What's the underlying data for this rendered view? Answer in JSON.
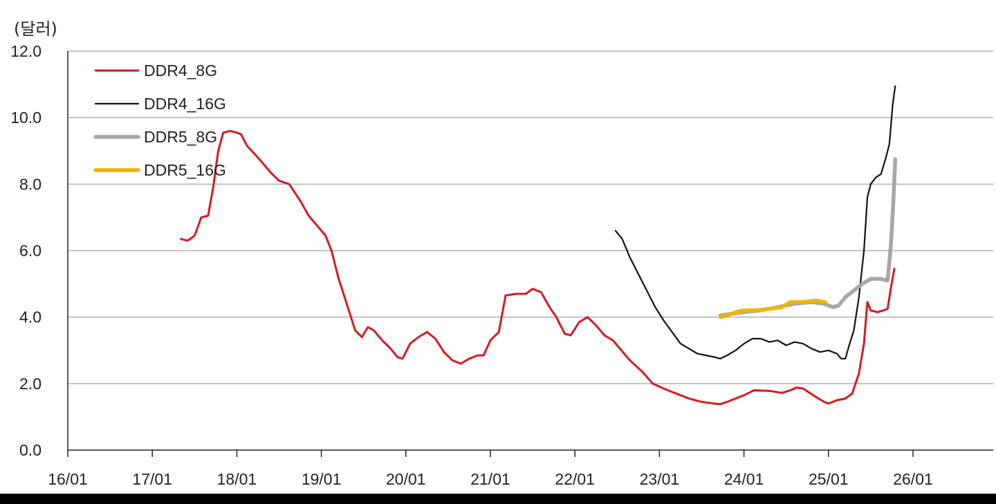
{
  "chart_data": {
    "type": "line",
    "unit_label": "(달러)",
    "ylim": [
      0,
      12
    ],
    "y_ticks": [
      "0.0",
      "2.0",
      "4.0",
      "6.0",
      "8.0",
      "10.0",
      "12.0"
    ],
    "y_tick_values": [
      0,
      2,
      4,
      6,
      8,
      10,
      12
    ],
    "x_ticks": [
      "16/01",
      "17/01",
      "18/01",
      "19/01",
      "20/01",
      "21/01",
      "22/01",
      "23/01",
      "24/01",
      "25/01",
      "26/01"
    ],
    "x_tick_values": [
      2016.0,
      2017.0,
      2018.0,
      2019.0,
      2020.0,
      2021.0,
      2022.0,
      2023.0,
      2024.0,
      2025.0,
      2026.0
    ],
    "xlim": [
      2016.0,
      2026.9
    ],
    "grid": "horizontal",
    "legend_position": "top-left",
    "series": [
      {
        "name": "DDR4_8G",
        "color": "#d71920",
        "points": [
          [
            2017.34,
            6.35
          ],
          [
            2017.42,
            6.3
          ],
          [
            2017.5,
            6.45
          ],
          [
            2017.58,
            7.0
          ],
          [
            2017.66,
            7.05
          ],
          [
            2017.72,
            7.9
          ],
          [
            2017.78,
            9.0
          ],
          [
            2017.84,
            9.55
          ],
          [
            2017.92,
            9.6
          ],
          [
            2018.0,
            9.55
          ],
          [
            2018.05,
            9.5
          ],
          [
            2018.12,
            9.15
          ],
          [
            2018.25,
            8.8
          ],
          [
            2018.4,
            8.35
          ],
          [
            2018.5,
            8.1
          ],
          [
            2018.62,
            8.0
          ],
          [
            2018.75,
            7.5
          ],
          [
            2018.85,
            7.05
          ],
          [
            2018.95,
            6.75
          ],
          [
            2019.05,
            6.45
          ],
          [
            2019.12,
            6.0
          ],
          [
            2019.2,
            5.2
          ],
          [
            2019.3,
            4.4
          ],
          [
            2019.4,
            3.6
          ],
          [
            2019.48,
            3.4
          ],
          [
            2019.55,
            3.7
          ],
          [
            2019.62,
            3.6
          ],
          [
            2019.72,
            3.3
          ],
          [
            2019.82,
            3.05
          ],
          [
            2019.9,
            2.8
          ],
          [
            2019.96,
            2.75
          ],
          [
            2020.05,
            3.2
          ],
          [
            2020.15,
            3.4
          ],
          [
            2020.25,
            3.55
          ],
          [
            2020.35,
            3.35
          ],
          [
            2020.45,
            2.95
          ],
          [
            2020.55,
            2.7
          ],
          [
            2020.65,
            2.6
          ],
          [
            2020.75,
            2.75
          ],
          [
            2020.85,
            2.85
          ],
          [
            2020.92,
            2.85
          ],
          [
            2021.0,
            3.3
          ],
          [
            2021.1,
            3.55
          ],
          [
            2021.18,
            4.65
          ],
          [
            2021.3,
            4.7
          ],
          [
            2021.42,
            4.7
          ],
          [
            2021.5,
            4.85
          ],
          [
            2021.6,
            4.75
          ],
          [
            2021.7,
            4.3
          ],
          [
            2021.78,
            4.0
          ],
          [
            2021.88,
            3.5
          ],
          [
            2021.95,
            3.45
          ],
          [
            2022.05,
            3.85
          ],
          [
            2022.15,
            4.0
          ],
          [
            2022.25,
            3.75
          ],
          [
            2022.35,
            3.45
          ],
          [
            2022.45,
            3.3
          ],
          [
            2022.55,
            3.0
          ],
          [
            2022.65,
            2.7
          ],
          [
            2022.8,
            2.35
          ],
          [
            2022.92,
            2.0
          ],
          [
            2023.05,
            1.85
          ],
          [
            2023.2,
            1.7
          ],
          [
            2023.35,
            1.55
          ],
          [
            2023.5,
            1.45
          ],
          [
            2023.65,
            1.4
          ],
          [
            2023.72,
            1.38
          ],
          [
            2023.8,
            1.45
          ],
          [
            2023.9,
            1.55
          ],
          [
            2024.0,
            1.65
          ],
          [
            2024.12,
            1.8
          ],
          [
            2024.3,
            1.78
          ],
          [
            2024.45,
            1.72
          ],
          [
            2024.55,
            1.8
          ],
          [
            2024.62,
            1.88
          ],
          [
            2024.7,
            1.85
          ],
          [
            2024.85,
            1.6
          ],
          [
            2024.95,
            1.45
          ],
          [
            2025.0,
            1.4
          ],
          [
            2025.1,
            1.5
          ],
          [
            2025.2,
            1.55
          ],
          [
            2025.28,
            1.7
          ],
          [
            2025.36,
            2.3
          ],
          [
            2025.42,
            3.2
          ],
          [
            2025.46,
            4.45
          ],
          [
            2025.5,
            4.2
          ],
          [
            2025.58,
            4.15
          ],
          [
            2025.65,
            4.2
          ],
          [
            2025.7,
            4.25
          ],
          [
            2025.74,
            4.9
          ],
          [
            2025.78,
            5.45
          ]
        ]
      },
      {
        "name": "DDR4_16G",
        "color": "#111111",
        "points": [
          [
            2022.48,
            6.6
          ],
          [
            2022.56,
            6.35
          ],
          [
            2022.65,
            5.8
          ],
          [
            2022.75,
            5.3
          ],
          [
            2022.85,
            4.8
          ],
          [
            2022.95,
            4.3
          ],
          [
            2023.05,
            3.9
          ],
          [
            2023.15,
            3.55
          ],
          [
            2023.25,
            3.2
          ],
          [
            2023.35,
            3.05
          ],
          [
            2023.45,
            2.9
          ],
          [
            2023.55,
            2.85
          ],
          [
            2023.65,
            2.8
          ],
          [
            2023.72,
            2.75
          ],
          [
            2023.8,
            2.85
          ],
          [
            2023.9,
            3.0
          ],
          [
            2024.0,
            3.2
          ],
          [
            2024.1,
            3.35
          ],
          [
            2024.2,
            3.35
          ],
          [
            2024.3,
            3.25
          ],
          [
            2024.4,
            3.3
          ],
          [
            2024.5,
            3.15
          ],
          [
            2024.6,
            3.25
          ],
          [
            2024.7,
            3.2
          ],
          [
            2024.8,
            3.05
          ],
          [
            2024.9,
            2.95
          ],
          [
            2025.0,
            3.0
          ],
          [
            2025.1,
            2.9
          ],
          [
            2025.15,
            2.75
          ],
          [
            2025.2,
            2.75
          ],
          [
            2025.25,
            3.2
          ],
          [
            2025.3,
            3.6
          ],
          [
            2025.36,
            4.6
          ],
          [
            2025.42,
            6.0
          ],
          [
            2025.46,
            7.6
          ],
          [
            2025.5,
            8.0
          ],
          [
            2025.56,
            8.2
          ],
          [
            2025.62,
            8.3
          ],
          [
            2025.68,
            8.8
          ],
          [
            2025.72,
            9.2
          ],
          [
            2025.76,
            10.4
          ],
          [
            2025.79,
            10.95
          ]
        ]
      },
      {
        "name": "DDR5_8G",
        "color": "#a6a6a6",
        "points": [
          [
            2023.72,
            4.05
          ],
          [
            2023.85,
            4.1
          ],
          [
            2024.0,
            4.15
          ],
          [
            2024.2,
            4.2
          ],
          [
            2024.4,
            4.3
          ],
          [
            2024.6,
            4.4
          ],
          [
            2024.8,
            4.45
          ],
          [
            2024.95,
            4.4
          ],
          [
            2025.05,
            4.3
          ],
          [
            2025.12,
            4.35
          ],
          [
            2025.2,
            4.6
          ],
          [
            2025.3,
            4.8
          ],
          [
            2025.4,
            5.0
          ],
          [
            2025.5,
            5.15
          ],
          [
            2025.62,
            5.15
          ],
          [
            2025.7,
            5.1
          ],
          [
            2025.74,
            6.2
          ],
          [
            2025.77,
            7.6
          ],
          [
            2025.79,
            8.75
          ]
        ]
      },
      {
        "name": "DDR5_16G",
        "color": "#f0b400",
        "points": [
          [
            2023.72,
            4.0
          ],
          [
            2023.8,
            4.05
          ],
          [
            2023.9,
            4.15
          ],
          [
            2024.0,
            4.2
          ],
          [
            2024.15,
            4.2
          ],
          [
            2024.3,
            4.25
          ],
          [
            2024.45,
            4.3
          ],
          [
            2024.55,
            4.45
          ],
          [
            2024.7,
            4.45
          ],
          [
            2024.85,
            4.5
          ],
          [
            2024.96,
            4.45
          ]
        ]
      }
    ]
  }
}
